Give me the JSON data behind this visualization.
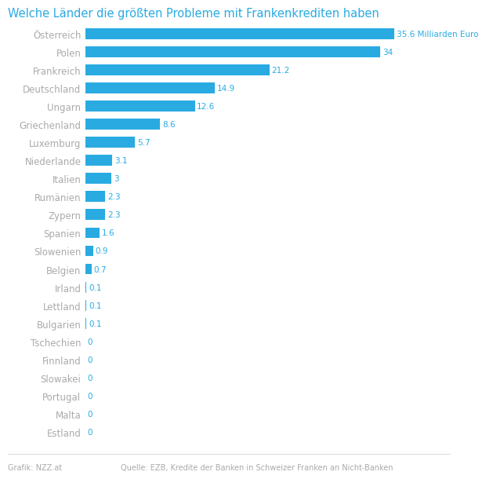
{
  "title": "Welche Länder die größten Probleme mit Frankenkrediten haben",
  "categories": [
    "Österreich",
    "Polen",
    "Frankreich",
    "Deutschland",
    "Ungarn",
    "Griechenland",
    "Luxemburg",
    "Niederlande",
    "Italien",
    "Rumänien",
    "Zypern",
    "Spanien",
    "Slowenien",
    "Belgien",
    "Irland",
    "Lettland",
    "Bulgarien",
    "Tschechien",
    "Finnland",
    "Slowakei",
    "Portugal",
    "Malta",
    "Estland"
  ],
  "values": [
    35.6,
    34,
    21.2,
    14.9,
    12.6,
    8.6,
    5.7,
    3.1,
    3,
    2.3,
    2.3,
    1.6,
    0.9,
    0.7,
    0.1,
    0.1,
    0.1,
    0,
    0,
    0,
    0,
    0,
    0
  ],
  "labels": [
    "35.6 Milliarden Euro",
    "34",
    "21.2",
    "14.9",
    "12.6",
    "8.6",
    "5.7",
    "3.1",
    "3",
    "2.3",
    "2.3",
    "1.6",
    "0.9",
    "0.7",
    "0.1",
    "0.1",
    "0.1",
    "0",
    "0",
    "0",
    "0",
    "0",
    "0"
  ],
  "bar_color": "#29ABE2",
  "label_color": "#29ABE2",
  "title_color": "#29ABE2",
  "ytick_color": "#aaaaaa",
  "background_color": "#ffffff",
  "footer_left": "Grafik: NZZ.at",
  "footer_right": "Quelle: EZB, Kredite der Banken in Schweizer Franken an Nicht-Banken",
  "footer_color": "#aaaaaa",
  "xlim": [
    0,
    42
  ]
}
